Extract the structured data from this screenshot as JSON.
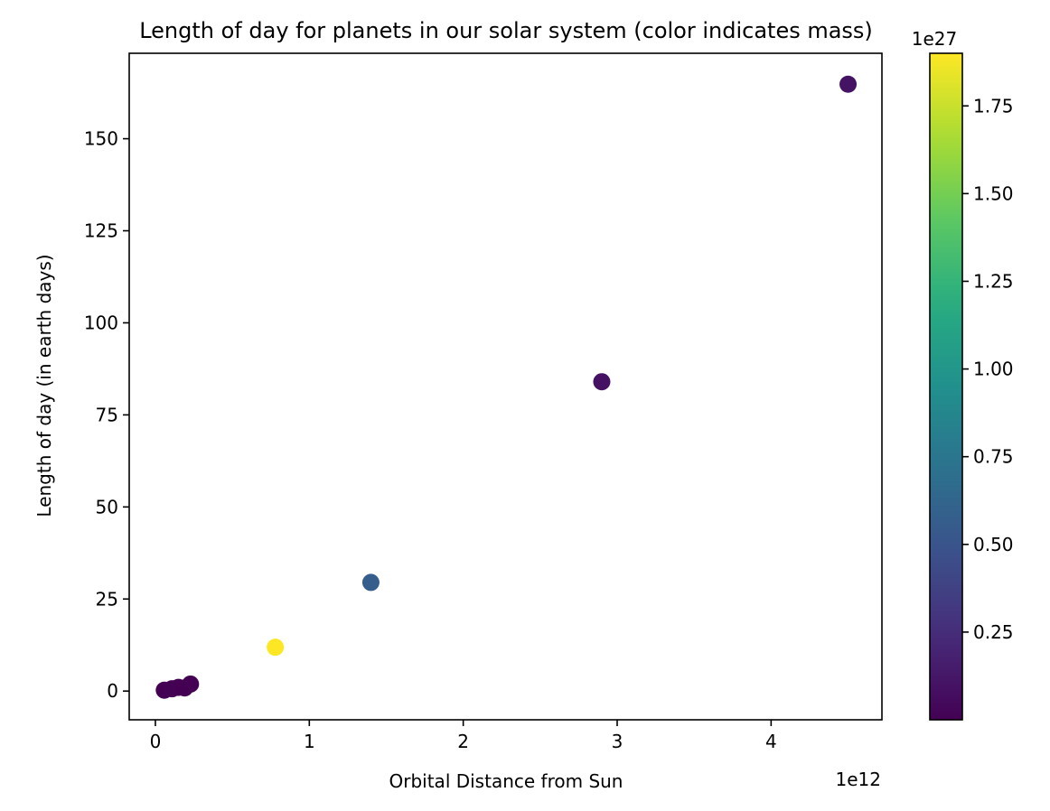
{
  "chart_data": {
    "type": "scatter",
    "title": "Length of day for planets in our solar system (color indicates mass)",
    "xlabel": "Orbital Distance from Sun",
    "ylabel": "Length of day (in earth days)",
    "x_offset_label": "1e12",
    "x_scale": 1000000000000.0,
    "xlim": [
      -0.17,
      4.72
    ],
    "ylim": [
      -7.8,
      173.2
    ],
    "x_ticks": [
      0,
      1,
      2,
      3,
      4
    ],
    "y_ticks": [
      0,
      25,
      50,
      75,
      100,
      125,
      150
    ],
    "colorbar": {
      "label_offset": "1e27",
      "scale": 1e+27,
      "range": [
        0.0,
        1.9
      ],
      "ticks": [
        0.25,
        0.5,
        0.75,
        1.0,
        1.25,
        1.5,
        1.75
      ],
      "colormap": "viridis"
    },
    "points": [
      {
        "x": 0.058,
        "y": 0.24,
        "mass": 0.00033
      },
      {
        "x": 0.108,
        "y": 0.62,
        "mass": 0.0049
      },
      {
        "x": 0.15,
        "y": 1.0,
        "mass": 0.006
      },
      {
        "x": 0.19,
        "y": 0.85,
        "mass": 0.0007
      },
      {
        "x": 0.228,
        "y": 1.9,
        "mass": 0.00064
      },
      {
        "x": 0.779,
        "y": 11.9,
        "mass": 1.9
      },
      {
        "x": 1.4,
        "y": 29.5,
        "mass": 0.57
      },
      {
        "x": 2.9,
        "y": 84.0,
        "mass": 0.087
      },
      {
        "x": 4.5,
        "y": 164.8,
        "mass": 0.1
      }
    ]
  }
}
